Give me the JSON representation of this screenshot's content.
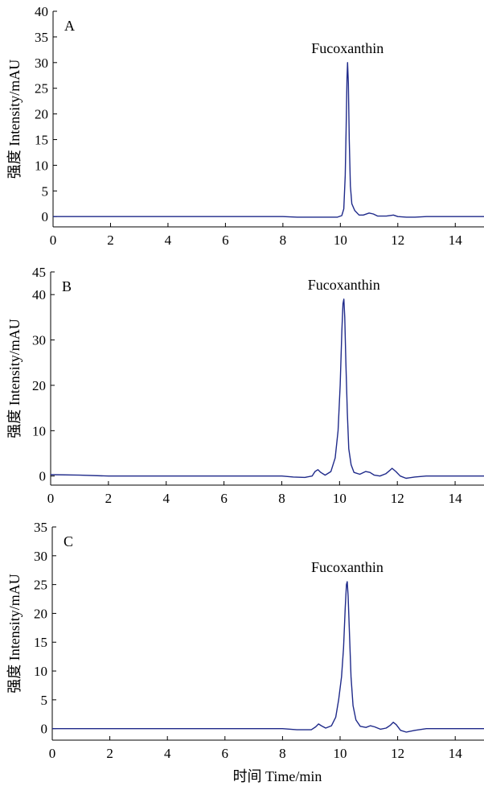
{
  "colors": {
    "trace": "#1f2a8a",
    "axis": "#000000"
  },
  "chart_data": [
    {
      "type": "line",
      "panel_label": "A",
      "ylabel": "强度 Intensity/mAU",
      "xlabel": "",
      "xlim": [
        0,
        15
      ],
      "ylim": [
        -2,
        40
      ],
      "x_ticks": [
        0,
        2,
        4,
        6,
        8,
        10,
        12,
        14
      ],
      "y_ticks": [
        0,
        5,
        10,
        15,
        20,
        25,
        30,
        35,
        40
      ],
      "annotation": {
        "text": "Fucoxanthin",
        "x": 10.25,
        "y": 30
      },
      "series": [
        {
          "x": [
            0,
            1,
            1.5,
            2,
            4,
            6,
            6.8,
            8,
            8.5,
            9,
            9.6,
            9.9,
            10.05,
            10.12,
            10.17,
            10.2,
            10.23,
            10.25,
            10.28,
            10.31,
            10.35,
            10.4,
            10.5,
            10.65,
            10.8,
            11,
            11.15,
            11.3,
            11.6,
            11.85,
            12,
            12.3,
            12.6,
            13,
            14,
            15
          ],
          "y": [
            0,
            0,
            0,
            0,
            0,
            0,
            0,
            0,
            -0.1,
            -0.1,
            -0.1,
            -0.1,
            0.2,
            1.5,
            8,
            17,
            27,
            30,
            26,
            15,
            6,
            2.5,
            1.2,
            0.3,
            0.3,
            0.7,
            0.5,
            0.1,
            0.1,
            0.3,
            0,
            -0.1,
            -0.1,
            0,
            0,
            0
          ]
        }
      ]
    },
    {
      "type": "line",
      "panel_label": "B",
      "ylabel": "强度 Intensity/mAU",
      "xlabel": "",
      "xlim": [
        0,
        15
      ],
      "ylim": [
        -2,
        45
      ],
      "x_ticks": [
        0,
        2,
        4,
        6,
        8,
        10,
        12,
        14
      ],
      "y_ticks": [
        0,
        10,
        20,
        30,
        40,
        45
      ],
      "annotation": {
        "text": "Fucoxanthin",
        "x": 10.15,
        "y": 39
      },
      "series": [
        {
          "x": [
            0,
            1,
            2,
            4,
            6,
            7,
            8,
            8.4,
            8.8,
            9.05,
            9.15,
            9.25,
            9.35,
            9.5,
            9.7,
            9.85,
            9.95,
            10.02,
            10.08,
            10.12,
            10.15,
            10.18,
            10.22,
            10.27,
            10.32,
            10.4,
            10.5,
            10.7,
            10.9,
            11.05,
            11.2,
            11.4,
            11.6,
            11.75,
            11.82,
            11.95,
            12.1,
            12.3,
            12.6,
            13,
            14,
            15
          ],
          "y": [
            0.3,
            0.2,
            0,
            0,
            0,
            0,
            0,
            -0.2,
            -0.3,
            0,
            1,
            1.4,
            0.8,
            0.2,
            1,
            4,
            10,
            20,
            32,
            38,
            39,
            35,
            25,
            14,
            6,
            2.5,
            0.8,
            0.4,
            1,
            0.8,
            0.2,
            0,
            0.5,
            1.3,
            1.7,
            1,
            0,
            -0.5,
            -0.2,
            0,
            0,
            0
          ]
        }
      ]
    },
    {
      "type": "line",
      "panel_label": "C",
      "ylabel": "强度 Intensity/mAU",
      "xlabel": "时间 Time/min",
      "xlim": [
        0,
        15
      ],
      "ylim": [
        -2,
        35
      ],
      "x_ticks": [
        0,
        2,
        4,
        6,
        8,
        10,
        12,
        14
      ],
      "y_ticks": [
        0,
        5,
        10,
        15,
        20,
        25,
        30,
        35
      ],
      "annotation": {
        "text": "Fucoxanthin",
        "x": 10.25,
        "y": 25.5
      },
      "series": [
        {
          "x": [
            0,
            1,
            2,
            4,
            6,
            7,
            8,
            8.5,
            9,
            9.15,
            9.25,
            9.35,
            9.5,
            9.7,
            9.85,
            9.95,
            10.05,
            10.12,
            10.18,
            10.22,
            10.25,
            10.28,
            10.33,
            10.38,
            10.45,
            10.55,
            10.7,
            10.9,
            11.05,
            11.2,
            11.4,
            11.6,
            11.75,
            11.85,
            11.95,
            12.1,
            12.3,
            12.6,
            13,
            14,
            15
          ],
          "y": [
            0,
            0,
            0,
            0,
            0,
            0,
            0,
            -0.2,
            -0.2,
            0.3,
            0.8,
            0.5,
            0.1,
            0.5,
            2,
            5,
            9,
            14,
            21,
            25,
            25.5,
            23,
            16,
            9,
            4,
            1.5,
            0.4,
            0.2,
            0.5,
            0.3,
            -0.1,
            0.1,
            0.6,
            1.1,
            0.7,
            -0.3,
            -0.6,
            -0.3,
            0,
            0,
            0
          ]
        }
      ]
    }
  ]
}
